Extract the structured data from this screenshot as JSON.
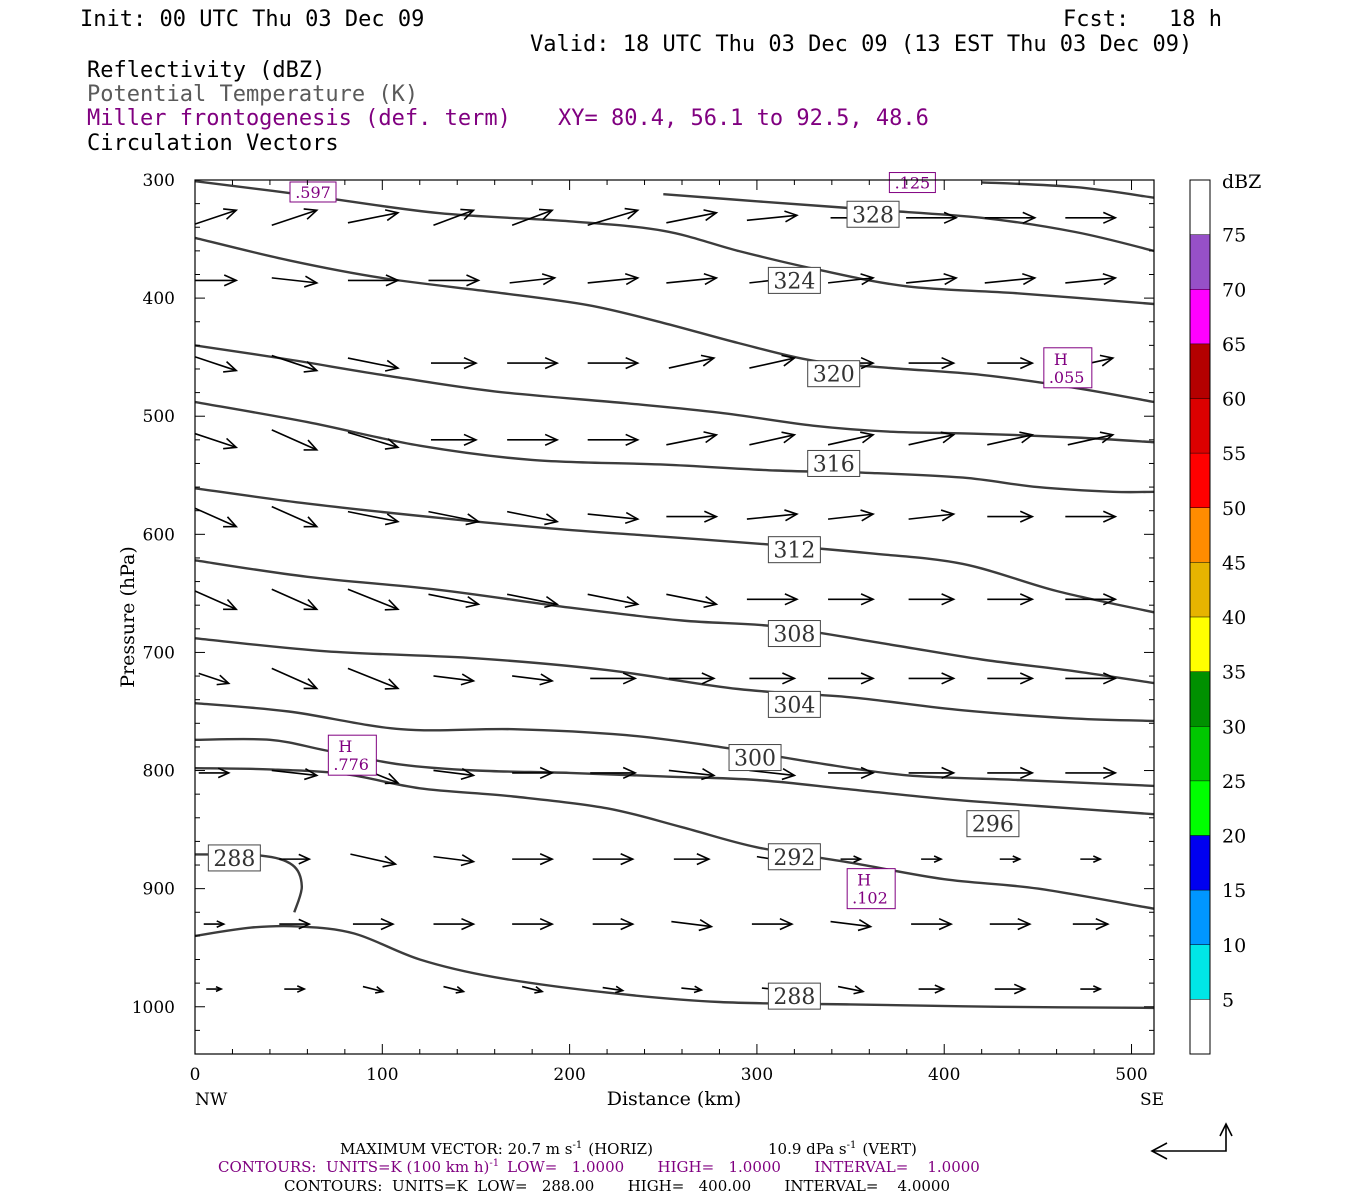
{
  "header": {
    "init": "Init: 00 UTC Thu 03 Dec 09",
    "fcst": "Fcst:   18 h",
    "valid": "Valid: 18 UTC Thu 03 Dec 09 (13 EST Thu 03 Dec 09)",
    "fields": {
      "reflectivity": "Reflectivity (dBZ)",
      "theta": "Potential Temperature (K)",
      "miller": "Miller frontogenesis (def. term)",
      "xy": "XY=  80.4, 56.1 to  92.5, 48.6",
      "vectors": "Circulation Vectors"
    }
  },
  "colors": {
    "contour": "#3c3c3c",
    "purple": "#800080",
    "grey_text": "#5a5a5a"
  },
  "colorbar": {
    "unit": "dBZ",
    "levels": [
      5,
      10,
      15,
      20,
      25,
      30,
      35,
      40,
      45,
      50,
      55,
      60,
      65,
      70,
      75
    ],
    "colors": [
      "#00e6e6",
      "#0096ff",
      "#0000f0",
      "#00ff00",
      "#00c800",
      "#009000",
      "#ffff00",
      "#e6b400",
      "#ff8c00",
      "#ff0000",
      "#dc0000",
      "#b40000",
      "#ff00ff",
      "#9650c8",
      "#ffffff"
    ]
  },
  "footer": {
    "max_vector": "MAXIMUM VECTOR:  20.7 m s",
    "max_vector_unit": "(HORIZ)",
    "vert": "10.9 dPa s",
    "vert_unit": "(VERT)",
    "purple_line": "CONTOURS:  UNITS=K (100 km h)",
    "purple_rest": "LOW=   1.0000       HIGH=   1.0000       INTERVAL=    1.0000",
    "black_line": "CONTOURS:  UNITS=K  LOW=   288.00       HIGH=   400.00       INTERVAL=    4.0000",
    "sup": "-1"
  },
  "chart_data": {
    "type": "line",
    "title": "Reflectivity (dBZ) / Potential Temperature (K) / Miller frontogenesis (def. term) / Circulation Vectors",
    "xlabel": "Distance (km)",
    "ylabel": "Pressure (hPa)",
    "xlim": [
      0,
      512
    ],
    "ylim": [
      1040,
      300
    ],
    "x_ticks": [
      0,
      100,
      200,
      300,
      400,
      500
    ],
    "y_ticks": [
      300,
      400,
      500,
      600,
      700,
      800,
      900,
      1000
    ],
    "x_end_labels": {
      "left": "NW",
      "right": "SE"
    },
    "theta_contours": [
      {
        "value": 288,
        "label": "288",
        "label_at": [
          320,
          991
        ],
        "points": [
          [
            0,
            940
          ],
          [
            30,
            933
          ],
          [
            55,
            932
          ],
          [
            85,
            938
          ],
          [
            120,
            960
          ],
          [
            160,
            975
          ],
          [
            220,
            988
          ],
          [
            280,
            996
          ],
          [
            350,
            998
          ],
          [
            430,
            1000
          ],
          [
            512,
            1001
          ]
        ]
      },
      {
        "value": 288,
        "label": "288",
        "label_at": [
          21,
          874
        ],
        "points": [
          [
            0,
            871
          ],
          [
            35,
            872
          ],
          [
            52,
            880
          ],
          [
            57,
            898
          ],
          [
            53,
            920
          ]
        ]
      },
      {
        "value": 292,
        "label": "292",
        "label_at": [
          320,
          873
        ],
        "points": [
          [
            0,
            798
          ],
          [
            40,
            799
          ],
          [
            80,
            803
          ],
          [
            120,
            815
          ],
          [
            170,
            822
          ],
          [
            220,
            832
          ],
          [
            260,
            848
          ],
          [
            300,
            865
          ],
          [
            350,
            878
          ],
          [
            400,
            892
          ],
          [
            450,
            900
          ],
          [
            512,
            917
          ]
        ]
      },
      {
        "value": 296,
        "label": "296",
        "label_at": [
          426,
          845
        ],
        "points": [
          [
            0,
            774
          ],
          [
            40,
            774
          ],
          [
            70,
            783
          ],
          [
            110,
            795
          ],
          [
            150,
            800
          ],
          [
            200,
            802
          ],
          [
            250,
            805
          ],
          [
            300,
            808
          ],
          [
            350,
            816
          ],
          [
            400,
            824
          ],
          [
            450,
            830
          ],
          [
            512,
            837
          ]
        ]
      },
      {
        "value": 300,
        "label": "300",
        "label_at": [
          299,
          789
        ],
        "points": [
          [
            0,
            743
          ],
          [
            50,
            750
          ],
          [
            110,
            765
          ],
          [
            170,
            765
          ],
          [
            230,
            770
          ],
          [
            280,
            780
          ],
          [
            330,
            793
          ],
          [
            380,
            804
          ],
          [
            440,
            808
          ],
          [
            512,
            813
          ]
        ]
      },
      {
        "value": 304,
        "label": "304",
        "label_at": [
          320,
          744
        ],
        "points": [
          [
            0,
            688
          ],
          [
            70,
            699
          ],
          [
            150,
            705
          ],
          [
            220,
            715
          ],
          [
            290,
            731
          ],
          [
            350,
            738
          ],
          [
            410,
            749
          ],
          [
            470,
            756
          ],
          [
            512,
            758
          ]
        ]
      },
      {
        "value": 308,
        "label": "308",
        "label_at": [
          320,
          684
        ],
        "points": [
          [
            0,
            622
          ],
          [
            60,
            636
          ],
          [
            130,
            647
          ],
          [
            200,
            662
          ],
          [
            260,
            673
          ],
          [
            310,
            678
          ],
          [
            370,
            693
          ],
          [
            420,
            706
          ],
          [
            470,
            716
          ],
          [
            512,
            726
          ]
        ]
      },
      {
        "value": 312,
        "label": "312",
        "label_at": [
          320,
          613
        ],
        "points": [
          [
            0,
            561
          ],
          [
            60,
            574
          ],
          [
            130,
            586
          ],
          [
            190,
            595
          ],
          [
            250,
            602
          ],
          [
            310,
            609
          ],
          [
            360,
            616
          ],
          [
            410,
            625
          ],
          [
            460,
            648
          ],
          [
            512,
            666
          ]
        ]
      },
      {
        "value": 316,
        "label": "316",
        "label_at": [
          341,
          540
        ],
        "points": [
          [
            0,
            488
          ],
          [
            60,
            505
          ],
          [
            120,
            525
          ],
          [
            180,
            537
          ],
          [
            250,
            541
          ],
          [
            310,
            546
          ],
          [
            360,
            548
          ],
          [
            410,
            552
          ],
          [
            450,
            560
          ],
          [
            490,
            564
          ],
          [
            512,
            564
          ]
        ]
      },
      {
        "value": 320,
        "label": "320",
        "label_at": [
          341,
          464
        ],
        "points": [
          [
            0,
            440
          ],
          [
            50,
            452
          ],
          [
            100,
            465
          ],
          [
            160,
            479
          ],
          [
            230,
            489
          ],
          [
            280,
            497
          ],
          [
            330,
            508
          ],
          [
            370,
            513
          ],
          [
            420,
            515
          ],
          [
            470,
            518
          ],
          [
            512,
            522
          ]
        ]
      },
      {
        "value": 324,
        "label": "324",
        "label_at": [
          320,
          385
        ],
        "points": [
          [
            0,
            349
          ],
          [
            50,
            368
          ],
          [
            100,
            383
          ],
          [
            160,
            395
          ],
          [
            210,
            406
          ],
          [
            250,
            421
          ],
          [
            290,
            438
          ],
          [
            330,
            453
          ],
          [
            370,
            459
          ],
          [
            420,
            465
          ],
          [
            470,
            476
          ],
          [
            512,
            488
          ]
        ]
      },
      {
        "value": 328,
        "label": "328",
        "label_at": [
          362,
          329
        ],
        "points": [
          [
            0,
            301
          ],
          [
            60,
            313
          ],
          [
            130,
            328
          ],
          [
            200,
            335
          ],
          [
            250,
            343
          ],
          [
            290,
            360
          ],
          [
            330,
            375
          ],
          [
            380,
            390
          ],
          [
            440,
            396
          ],
          [
            512,
            405
          ]
        ]
      },
      {
        "value": 332,
        "label": "",
        "points": [
          [
            250,
            312
          ],
          [
            300,
            318
          ],
          [
            360,
            325
          ],
          [
            420,
            332
          ],
          [
            470,
            344
          ],
          [
            512,
            360
          ]
        ]
      },
      {
        "value": 336,
        "label": "",
        "points": [
          [
            420,
            302
          ],
          [
            470,
            306
          ],
          [
            512,
            315
          ]
        ]
      }
    ],
    "miller_maxima": [
      {
        "label": "H",
        "value": ".776",
        "at": [
          84,
          787
        ]
      },
      {
        "label": "H",
        "value": ".102",
        "at": [
          361,
          900
        ]
      },
      {
        "label": "H",
        "value": ".055",
        "at": [
          466,
          459
        ]
      }
    ],
    "miller_edge_labels": [
      {
        "value": ".597",
        "at": [
          63,
          311
        ]
      },
      {
        "value": ".125",
        "at": [
          383,
          303
        ]
      }
    ],
    "vectors": {
      "x": [
        10,
        53,
        95,
        138,
        180,
        223,
        265,
        308,
        350,
        393,
        435,
        478
      ],
      "rows": [
        {
          "p": 332,
          "u": [
            4.5,
            4.5,
            5,
            4,
            4,
            5,
            5,
            5,
            4,
            5,
            5,
            5
          ],
          "w": [
            -1.5,
            -1.5,
            -1,
            -1.5,
            -1.5,
            -1.5,
            -1,
            -0.5,
            0,
            0,
            0,
            0
          ]
        },
        {
          "p": 385,
          "u": [
            4.5,
            4.5,
            5,
            5,
            4.5,
            5,
            5,
            4.5,
            4.5,
            5,
            5,
            5
          ],
          "w": [
            0,
            0.5,
            0,
            0,
            -0.5,
            -0.5,
            -0.5,
            -0.5,
            -0.5,
            -0.5,
            -0.5,
            -0.5
          ]
        },
        {
          "p": 455,
          "u": [
            4.5,
            4.5,
            5,
            4.5,
            5,
            5,
            4.5,
            4.5,
            4.5,
            4.5,
            4.5,
            4.5
          ],
          "w": [
            1.5,
            1.5,
            1,
            0,
            0,
            0,
            -1,
            -1,
            0,
            0,
            0,
            -1
          ]
        },
        {
          "p": 520,
          "u": [
            4.5,
            4.5,
            5,
            4.5,
            5,
            5,
            5,
            4.5,
            4.5,
            4.5,
            4.5,
            4.5
          ],
          "w": [
            1.5,
            2,
            1.5,
            0,
            0,
            0,
            -1,
            -1,
            -1,
            -1,
            -1,
            -1
          ]
        },
        {
          "p": 585,
          "u": [
            4.5,
            4.5,
            5,
            5,
            5,
            5,
            5,
            5,
            4.5,
            4.5,
            4.5,
            5
          ],
          "w": [
            2,
            2,
            1,
            1,
            1,
            0.5,
            0,
            -0.5,
            -0.5,
            -0.5,
            0,
            0
          ]
        },
        {
          "p": 655,
          "u": [
            4.5,
            4.5,
            5,
            5,
            5,
            5,
            5,
            5,
            4.5,
            4.5,
            4.5,
            5
          ],
          "w": [
            2,
            2,
            2,
            1,
            1,
            1,
            1,
            0,
            0,
            0,
            0,
            0
          ]
        },
        {
          "p": 722,
          "u": [
            3,
            4.5,
            5,
            4,
            4,
            4.5,
            4.5,
            4.5,
            4.5,
            4.5,
            4.5,
            5
          ],
          "w": [
            1,
            2,
            2,
            0.5,
            0.5,
            0,
            0,
            0,
            0,
            0,
            0,
            0
          ]
        },
        {
          "p": 802,
          "u": [
            3,
            4.5,
            5,
            4,
            4,
            4.5,
            4.5,
            4.5,
            4.5,
            4.5,
            4.5,
            5
          ],
          "w": [
            0,
            0.5,
            2,
            0.5,
            0,
            0,
            0.5,
            0.5,
            0,
            0,
            0,
            0
          ]
        },
        {
          "p": 875,
          "u": [
            0,
            3,
            4.5,
            4,
            4,
            4,
            3.5,
            3,
            2,
            2,
            2,
            2
          ],
          "w": [
            0,
            0,
            1,
            0.5,
            0,
            0,
            0,
            0.5,
            0,
            0,
            0,
            0
          ]
        },
        {
          "p": 930,
          "u": [
            2,
            3,
            4,
            4,
            4,
            4,
            4,
            4,
            4,
            4,
            4,
            3.5
          ],
          "w": [
            0,
            0,
            0,
            0,
            0,
            0,
            0.5,
            0,
            0.5,
            0,
            0,
            0
          ]
        },
        {
          "p": 985,
          "u": [
            1.5,
            2,
            2,
            2,
            2,
            2,
            2,
            2,
            2.5,
            2.5,
            3,
            2
          ],
          "w": [
            0,
            0,
            0.5,
            0.5,
            0.5,
            0.3,
            0.2,
            0.2,
            0.5,
            0,
            0,
            0
          ]
        }
      ]
    },
    "reference_vector": {
      "horiz": 20.7,
      "vert": 10.9
    }
  }
}
